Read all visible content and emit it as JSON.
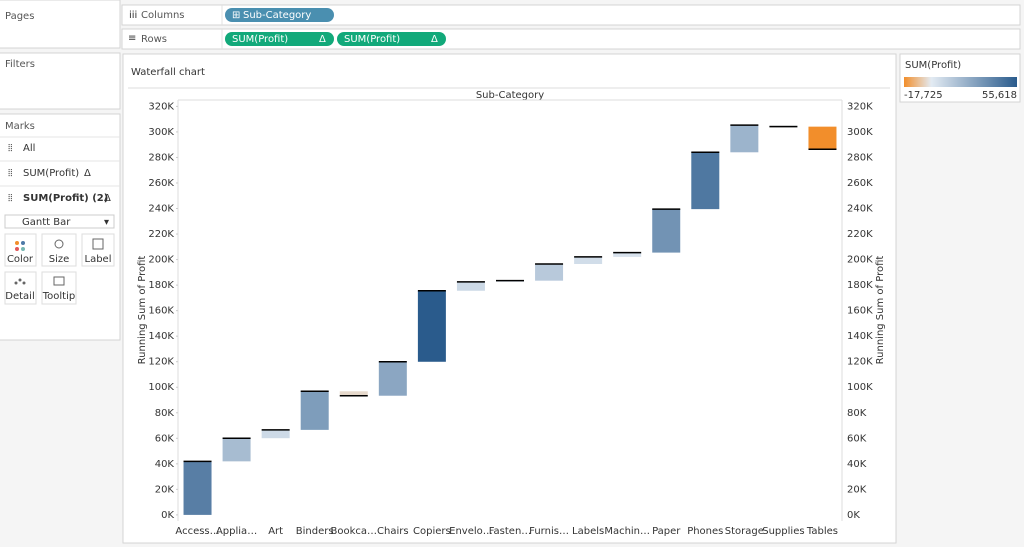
{
  "shelves": {
    "pages": "Pages",
    "filters": "Filters",
    "columns": "Columns",
    "rows": "Rows",
    "columns_pill": "Sub-Category",
    "rows_pills": [
      "SUM(Profit)",
      "SUM(Profit)"
    ],
    "delta": "Δ"
  },
  "marks": {
    "title": "Marks",
    "items": [
      "All",
      "SUM(Profit)",
      "SUM(Profit) (2)"
    ],
    "mark_type": "Gantt Bar",
    "buttons": [
      "Color",
      "Size",
      "Label",
      "Detail",
      "Tooltip"
    ]
  },
  "chart_data": {
    "type": "waterfall",
    "title": "Waterfall chart",
    "column_header": "Sub-Category",
    "y_label": "Running Sum of Profit",
    "categories": [
      "Access…",
      "Applia…",
      "Art",
      "Binders",
      "Bookca…",
      "Chairs",
      "Copiers",
      "Envelo…",
      "Fasten…",
      "Furnis…",
      "Labels",
      "Machin…",
      "Paper",
      "Phones",
      "Storage",
      "Supplies",
      "Tables"
    ],
    "values": [
      41937,
      18138,
      6528,
      30222,
      -3473,
      26590,
      55618,
      6964,
      950,
      13059,
      5546,
      3385,
      34054,
      44516,
      21279,
      -1189,
      -17725
    ],
    "ylim": [
      -4000,
      325000
    ],
    "yticks": [
      {
        "value": 0,
        "label": "0K"
      },
      {
        "value": 20000,
        "label": "20K"
      },
      {
        "value": 40000,
        "label": "40K"
      },
      {
        "value": 60000,
        "label": "60K"
      },
      {
        "value": 80000,
        "label": "80K"
      },
      {
        "value": 100000,
        "label": "100K"
      },
      {
        "value": 120000,
        "label": "120K"
      },
      {
        "value": 140000,
        "label": "140K"
      },
      {
        "value": 160000,
        "label": "160K"
      },
      {
        "value": 180000,
        "label": "180K"
      },
      {
        "value": 200000,
        "label": "200K"
      },
      {
        "value": 220000,
        "label": "220K"
      },
      {
        "value": 240000,
        "label": "240K"
      },
      {
        "value": 260000,
        "label": "260K"
      },
      {
        "value": 280000,
        "label": "280K"
      },
      {
        "value": 300000,
        "label": "300K"
      },
      {
        "value": 320000,
        "label": "320K"
      }
    ],
    "colors": {
      "negative": "#f28e2b",
      "zero": "#e3ebf3",
      "positive": "#2a5b8c"
    },
    "color_legend": {
      "title": "SUM(Profit)",
      "min": {
        "value": -17725,
        "label": "-17,725"
      },
      "max": {
        "value": 55618,
        "label": "55,618"
      }
    }
  }
}
